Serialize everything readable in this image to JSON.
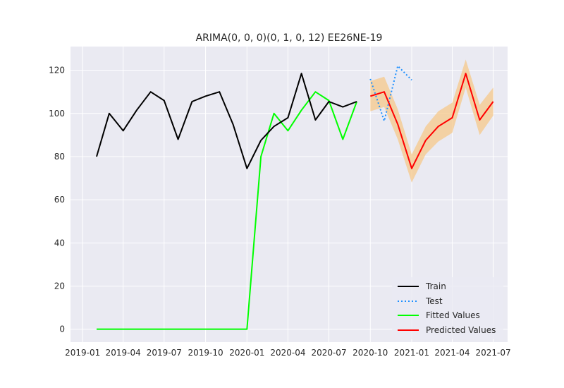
{
  "chart_data": {
    "type": "line",
    "title": "ARIMA(0, 0, 0)(0, 1, 0, 12) EE26NE-19",
    "xlabel": "",
    "ylabel": "",
    "x_ticks": [
      "2019-01",
      "2019-04",
      "2019-07",
      "2019-10",
      "2020-01",
      "2020-04",
      "2020-07",
      "2020-10",
      "2021-01",
      "2021-04",
      "2021-07"
    ],
    "y_ticks": [
      0,
      20,
      40,
      60,
      80,
      100,
      120
    ],
    "ylim": [
      -6,
      131
    ],
    "grid": true,
    "legend_position": "lower-right",
    "colors": {
      "background": "#eaeaf2",
      "grid": "#ffffff",
      "train": "#000000",
      "test": "#1e90ff",
      "fitted": "#00ff00",
      "predicted": "#ff0000",
      "band": "#f5c88a"
    },
    "series": [
      {
        "name": "Train",
        "style": "solid",
        "x": [
          "2019-02-01",
          "2019-03-01",
          "2019-04-01",
          "2019-05-01",
          "2019-06-01",
          "2019-07-01",
          "2019-08-01",
          "2019-09-01",
          "2019-10-01",
          "2019-11-01",
          "2019-12-01",
          "2020-01-01",
          "2020-02-01",
          "2020-03-01",
          "2020-04-01",
          "2020-05-01",
          "2020-06-01",
          "2020-07-01",
          "2020-08-01",
          "2020-09-01"
        ],
        "y": [
          80,
          100,
          92,
          101.5,
          110,
          106,
          88,
          105.5,
          108,
          110,
          95,
          74.5,
          87.5,
          94,
          98,
          118.5,
          97,
          105.5,
          103,
          105.5
        ]
      },
      {
        "name": "Test",
        "style": "dotted",
        "x": [
          "2020-10-01",
          "2020-11-01",
          "2020-12-01",
          "2021-01-01"
        ],
        "y": [
          116,
          96.5,
          122,
          115.5
        ]
      },
      {
        "name": "Fitted Values",
        "style": "solid",
        "x": [
          "2019-02-01",
          "2019-03-01",
          "2019-04-01",
          "2019-05-01",
          "2019-06-01",
          "2019-07-01",
          "2019-08-01",
          "2019-09-01",
          "2019-10-01",
          "2019-11-01",
          "2019-12-01",
          "2020-01-01",
          "2020-02-01",
          "2020-03-01",
          "2020-04-01",
          "2020-05-01",
          "2020-06-01",
          "2020-07-01",
          "2020-08-01",
          "2020-09-01"
        ],
        "y": [
          0,
          0,
          0,
          0,
          0,
          0,
          0,
          0,
          0,
          0,
          0,
          0,
          80,
          100,
          92,
          101.5,
          110,
          106,
          88,
          105.5
        ]
      },
      {
        "name": "Predicted Values",
        "style": "solid",
        "x": [
          "2020-10-01",
          "2020-11-01",
          "2020-12-01",
          "2021-01-01",
          "2021-02-01",
          "2021-03-01",
          "2021-04-01",
          "2021-05-01",
          "2021-06-01",
          "2021-07-01"
        ],
        "y": [
          108,
          110,
          95,
          74.5,
          87.5,
          94,
          98,
          118.5,
          97,
          105.5
        ],
        "lower": [
          101,
          103,
          88,
          68,
          81,
          87,
          91,
          112,
          90,
          99
        ],
        "upper": [
          115,
          117,
          102,
          81,
          94,
          101,
          105,
          125,
          104,
          112
        ]
      }
    ]
  }
}
